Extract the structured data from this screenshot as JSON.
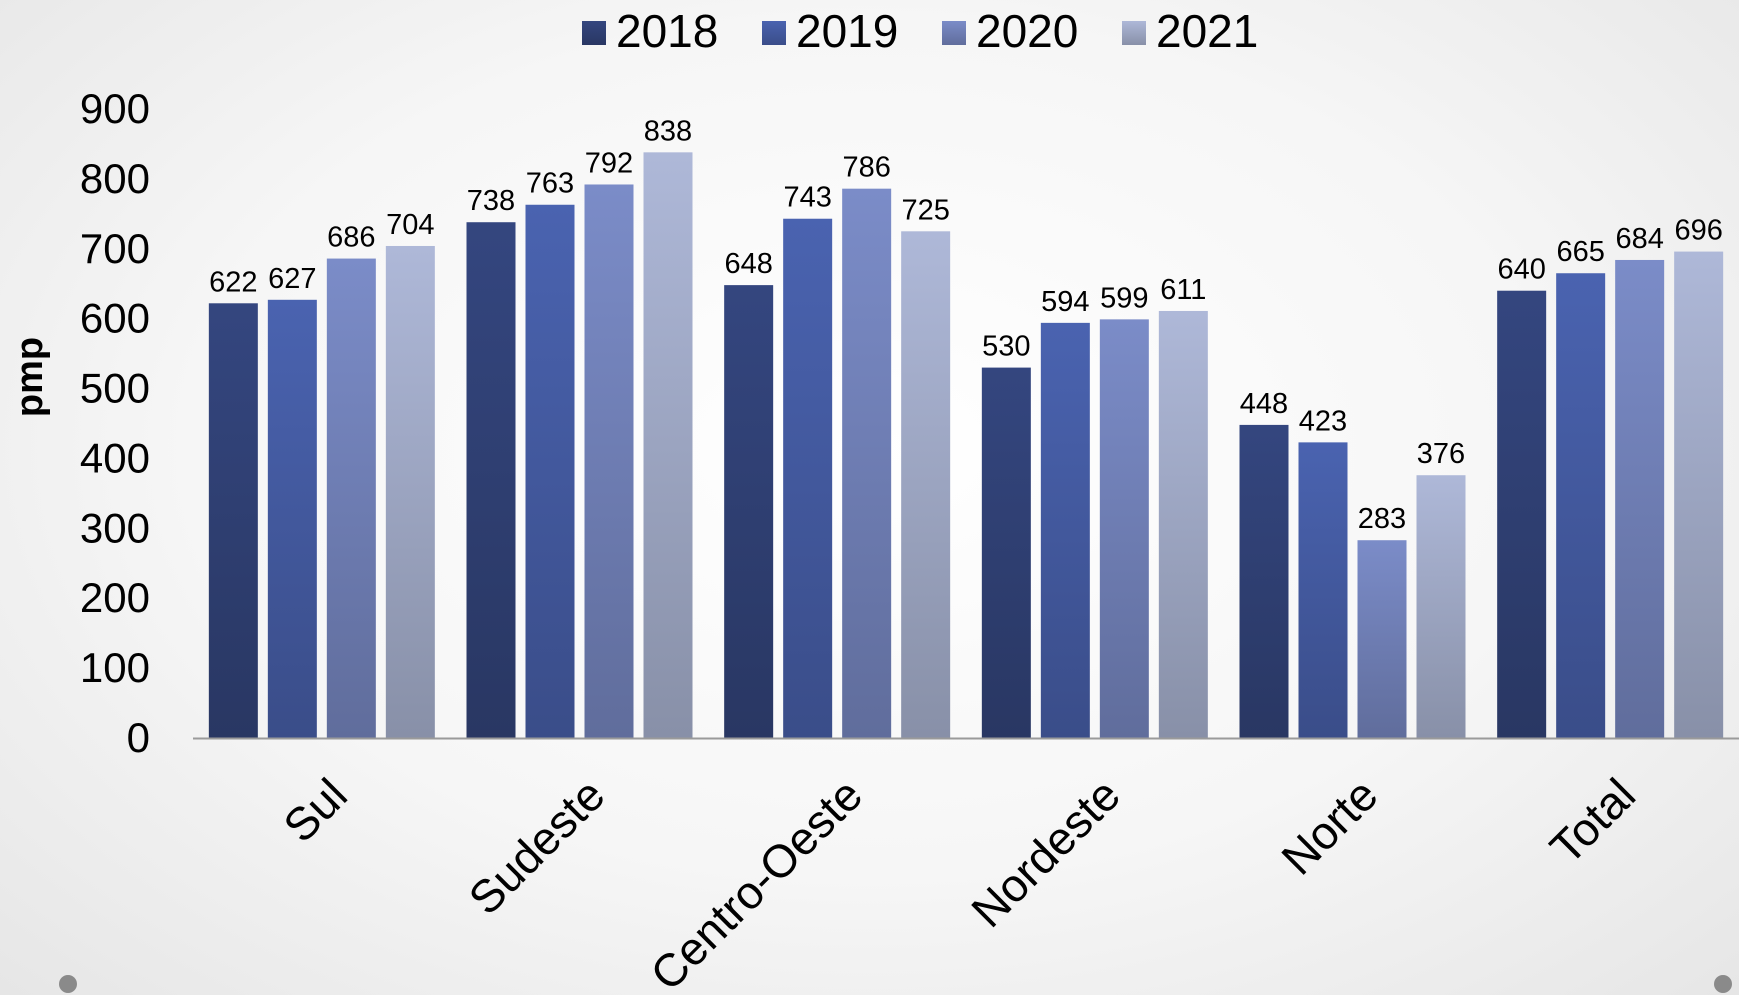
{
  "chart_data": {
    "type": "bar",
    "title": "",
    "xlabel": "",
    "ylabel": "pmp",
    "ylim": [
      0,
      900
    ],
    "yticks": [
      0,
      100,
      200,
      300,
      400,
      500,
      600,
      700,
      800,
      900
    ],
    "grid": false,
    "legend_position": "top-center",
    "categories": [
      "Sul",
      "Sudeste",
      "Centro-Oeste",
      "Nordeste",
      "Norte",
      "Total"
    ],
    "series": [
      {
        "name": "2018",
        "values": [
          622,
          738,
          648,
          530,
          448,
          640
        ],
        "color": "#34467f"
      },
      {
        "name": "2019",
        "values": [
          627,
          763,
          743,
          594,
          423,
          665
        ],
        "color": "#4a63b0"
      },
      {
        "name": "2020",
        "values": [
          686,
          792,
          786,
          599,
          283,
          684
        ],
        "color": "#7b8cc8"
      },
      {
        "name": "2021",
        "values": [
          704,
          838,
          725,
          611,
          376,
          696
        ],
        "color": "#aeb8d8"
      }
    ]
  }
}
